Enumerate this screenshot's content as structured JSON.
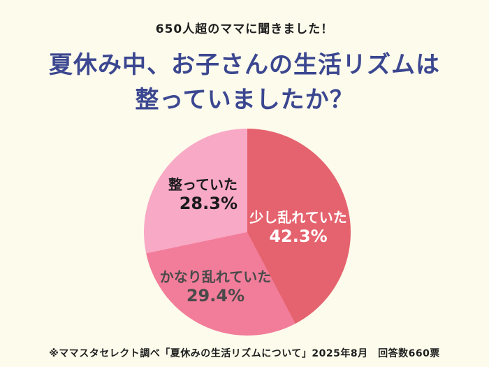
{
  "header": {
    "tagline": "650人超のママに聞きました！",
    "title_line1": "夏休み中、お子さんの生活リズムは",
    "title_line2": "整っていましたか？"
  },
  "chart_data": {
    "type": "pie",
    "title": "夏休み中、お子さんの生活リズムは整っていましたか？",
    "start_angle_deg": 0,
    "direction": "clockwise",
    "labels_position": "inside",
    "legend": "none",
    "slices": [
      {
        "label": "少し乱れていた",
        "value": 42.3,
        "value_label": "42.3%",
        "color": "#E5636E",
        "text_color": "#FFFFFF"
      },
      {
        "label": "かなり乱れていた",
        "value": 29.4,
        "value_label": "29.4%",
        "color": "#F27D9A",
        "text_color": "#4A4A4A"
      },
      {
        "label": "整っていた",
        "value": 28.3,
        "value_label": "28.3%",
        "color": "#F8A9C6",
        "text_color": "#1A1A1A"
      }
    ]
  },
  "footer": {
    "note": "※ママスタセレクト調べ「夏休みの生活リズムについて」2025年8月　回答数660票"
  },
  "colors": {
    "background": "#FDFBEC",
    "title": "#3B4790",
    "tagline": "#1E1E1E",
    "footer": "#1E1E1E"
  }
}
